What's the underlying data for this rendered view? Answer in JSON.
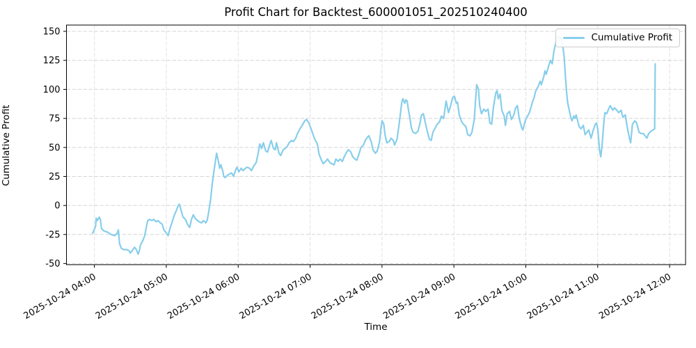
{
  "colors": {
    "line": "#87CEEB",
    "grid": "#b3b3b3",
    "spine": "#000000",
    "background": "#ffffff"
  },
  "chart_data": {
    "type": "line",
    "title": "Profit Chart for Backtest_600001051_202510240400",
    "xlabel": "Time",
    "ylabel": "Cumulative Profit",
    "grid": {
      "style": "dashed",
      "on": true
    },
    "legend": {
      "position": "upper-right",
      "entries": [
        {
          "label": "Cumulative Profit",
          "color": "#87CEEB"
        }
      ]
    },
    "x_axis": {
      "tick_labels": [
        "2025-10-24 04:00",
        "2025-10-24 05:00",
        "2025-10-24 06:00",
        "2025-10-24 07:00",
        "2025-10-24 08:00",
        "2025-10-24 09:00",
        "2025-10-24 10:00",
        "2025-10-24 11:00",
        "2025-10-24 12:00"
      ],
      "tick_minutes": [
        0,
        60,
        120,
        180,
        240,
        300,
        360,
        420,
        480
      ],
      "range_minutes": [
        -23.3,
        493.3
      ],
      "tick_rotation_deg": 30
    },
    "y_axis": {
      "tick_labels": [
        "-50",
        "-25",
        "0",
        "25",
        "50",
        "75",
        "100",
        "125",
        "150"
      ],
      "ticks": [
        -50,
        -25,
        0,
        25,
        50,
        75,
        100,
        125,
        150
      ],
      "range": [
        -51.0,
        155.4
      ]
    },
    "series": [
      {
        "name": "Cumulative Profit",
        "color": "#87CEEB",
        "points": [
          [
            -1.5,
            -24
          ],
          [
            1,
            -18
          ],
          [
            1.5,
            -11
          ],
          [
            2.5,
            -13
          ],
          [
            4,
            -10
          ],
          [
            5,
            -12
          ],
          [
            6,
            -20
          ],
          [
            8,
            -22
          ],
          [
            11,
            -23
          ],
          [
            14,
            -25
          ],
          [
            17,
            -26
          ],
          [
            19,
            -24
          ],
          [
            20,
            -21
          ],
          [
            21,
            -33
          ],
          [
            22.5,
            -37
          ],
          [
            24.5,
            -38
          ],
          [
            27,
            -38
          ],
          [
            29,
            -39
          ],
          [
            30,
            -41
          ],
          [
            31.5,
            -39
          ],
          [
            33.5,
            -36
          ],
          [
            35,
            -38
          ],
          [
            36.5,
            -42
          ],
          [
            37.5,
            -39
          ],
          [
            38.5,
            -34
          ],
          [
            40.5,
            -30
          ],
          [
            42,
            -26
          ],
          [
            43.5,
            -18
          ],
          [
            44.5,
            -13
          ],
          [
            46,
            -12
          ],
          [
            48,
            -13
          ],
          [
            49.5,
            -12
          ],
          [
            51.5,
            -14
          ],
          [
            53,
            -13
          ],
          [
            55,
            -15
          ],
          [
            56.5,
            -16
          ],
          [
            58,
            -21
          ],
          [
            59.5,
            -23
          ],
          [
            61.5,
            -26
          ],
          [
            63,
            -20
          ],
          [
            65,
            -14
          ],
          [
            66.5,
            -9
          ],
          [
            68.5,
            -4
          ],
          [
            70,
            0
          ],
          [
            71,
            1
          ],
          [
            72.5,
            -5
          ],
          [
            74,
            -10
          ],
          [
            76,
            -12
          ],
          [
            77.5,
            -16
          ],
          [
            79.5,
            -19
          ],
          [
            81,
            -12
          ],
          [
            82.5,
            -8
          ],
          [
            84,
            -11
          ],
          [
            86,
            -13
          ],
          [
            87.5,
            -14
          ],
          [
            89.5,
            -15
          ],
          [
            91,
            -13
          ],
          [
            93,
            -15
          ],
          [
            94,
            -13
          ],
          [
            95,
            -8
          ],
          [
            97,
            5
          ],
          [
            98.5,
            20
          ],
          [
            100.5,
            35
          ],
          [
            102,
            45
          ],
          [
            103.5,
            38
          ],
          [
            104.5,
            32
          ],
          [
            105.5,
            35
          ],
          [
            107,
            30
          ],
          [
            108,
            25
          ],
          [
            109,
            24
          ],
          [
            111,
            26
          ],
          [
            112.5,
            27
          ],
          [
            114.5,
            28
          ],
          [
            116,
            25
          ],
          [
            118,
            31
          ],
          [
            119,
            33
          ],
          [
            120.5,
            29
          ],
          [
            122.5,
            32
          ],
          [
            124,
            30
          ],
          [
            126,
            32
          ],
          [
            127.5,
            33
          ],
          [
            129.5,
            32
          ],
          [
            131,
            30
          ],
          [
            133,
            34
          ],
          [
            135,
            37
          ],
          [
            136.5,
            44
          ],
          [
            138,
            53
          ],
          [
            139.5,
            49
          ],
          [
            141,
            54
          ],
          [
            143,
            47
          ],
          [
            144.5,
            46
          ],
          [
            146.5,
            53
          ],
          [
            147.5,
            56
          ],
          [
            149.5,
            49
          ],
          [
            151,
            48
          ],
          [
            152,
            54
          ],
          [
            154,
            45
          ],
          [
            155.5,
            43
          ],
          [
            157.5,
            48
          ],
          [
            159,
            49
          ],
          [
            161,
            51
          ],
          [
            162.5,
            54
          ],
          [
            164.5,
            56
          ],
          [
            166,
            55
          ],
          [
            168,
            58
          ],
          [
            169.5,
            62
          ],
          [
            171.5,
            66
          ],
          [
            174,
            70
          ],
          [
            175.5,
            73
          ],
          [
            177,
            74
          ],
          [
            179,
            71
          ],
          [
            180.5,
            67
          ],
          [
            182.5,
            61
          ],
          [
            184,
            57
          ],
          [
            186,
            53
          ],
          [
            187.5,
            44
          ],
          [
            189.5,
            39
          ],
          [
            191,
            36
          ],
          [
            193,
            38
          ],
          [
            194.5,
            40
          ],
          [
            196.5,
            37
          ],
          [
            198,
            36
          ],
          [
            200,
            35
          ],
          [
            201.5,
            40
          ],
          [
            203.5,
            38
          ],
          [
            205,
            40
          ],
          [
            207,
            38
          ],
          [
            208.5,
            42
          ],
          [
            210.5,
            46
          ],
          [
            212,
            48
          ],
          [
            214,
            46
          ],
          [
            215.5,
            42
          ],
          [
            217.5,
            40
          ],
          [
            219,
            39
          ],
          [
            221,
            45
          ],
          [
            222.5,
            50
          ],
          [
            224.5,
            52
          ],
          [
            226,
            56
          ],
          [
            228,
            59
          ],
          [
            229,
            60
          ],
          [
            231,
            55
          ],
          [
            232.5,
            48
          ],
          [
            234.5,
            45
          ],
          [
            236,
            47
          ],
          [
            238,
            55
          ],
          [
            239,
            65
          ],
          [
            240,
            73
          ],
          [
            241.5,
            70
          ],
          [
            242.5,
            61
          ],
          [
            244,
            54
          ],
          [
            246,
            55
          ],
          [
            247.5,
            58
          ],
          [
            249.5,
            56
          ],
          [
            250.5,
            52
          ],
          [
            252.5,
            57
          ],
          [
            254,
            68
          ],
          [
            255.5,
            80
          ],
          [
            256.5,
            89
          ],
          [
            257.5,
            92
          ],
          [
            259,
            88
          ],
          [
            260,
            91
          ],
          [
            261,
            90
          ],
          [
            262,
            83
          ],
          [
            263.5,
            74
          ],
          [
            264.5,
            67
          ],
          [
            266,
            63
          ],
          [
            268,
            62
          ],
          [
            270,
            64
          ],
          [
            271.5,
            70
          ],
          [
            273,
            78
          ],
          [
            274.5,
            79
          ],
          [
            276,
            72
          ],
          [
            278,
            63
          ],
          [
            279.5,
            57
          ],
          [
            281,
            56
          ],
          [
            282.5,
            63
          ],
          [
            284.5,
            67
          ],
          [
            286,
            70
          ],
          [
            288,
            72
          ],
          [
            289.5,
            77
          ],
          [
            291.5,
            75
          ],
          [
            292.5,
            83
          ],
          [
            293.5,
            90
          ],
          [
            295.5,
            80
          ],
          [
            297,
            85
          ],
          [
            299,
            93
          ],
          [
            300.5,
            94
          ],
          [
            302,
            88
          ],
          [
            303,
            89
          ],
          [
            304.5,
            78
          ],
          [
            306.5,
            72
          ],
          [
            308,
            70
          ],
          [
            310,
            68
          ],
          [
            311.5,
            61
          ],
          [
            313.5,
            60
          ],
          [
            315,
            63
          ],
          [
            317,
            74
          ],
          [
            318,
            90
          ],
          [
            319,
            104
          ],
          [
            320.5,
            100
          ],
          [
            321.5,
            86
          ],
          [
            323,
            79
          ],
          [
            325,
            83
          ],
          [
            326.5,
            81
          ],
          [
            328.5,
            83
          ],
          [
            330,
            71
          ],
          [
            331.5,
            70
          ],
          [
            333,
            85
          ],
          [
            335,
            97
          ],
          [
            336,
            99
          ],
          [
            337,
            92
          ],
          [
            338.5,
            96
          ],
          [
            340,
            82
          ],
          [
            342,
            77
          ],
          [
            343,
            69
          ],
          [
            344.5,
            79
          ],
          [
            346.5,
            81
          ],
          [
            348,
            74
          ],
          [
            350,
            78
          ],
          [
            351.5,
            84
          ],
          [
            353,
            86
          ],
          [
            354.5,
            75
          ],
          [
            356.5,
            67
          ],
          [
            357.5,
            65
          ],
          [
            359.5,
            73
          ],
          [
            361,
            76
          ],
          [
            363,
            80
          ],
          [
            364.5,
            85
          ],
          [
            365.5,
            89
          ],
          [
            367,
            93
          ],
          [
            368,
            98
          ],
          [
            369,
            100
          ],
          [
            370.5,
            103
          ],
          [
            372,
            107
          ],
          [
            373,
            104
          ],
          [
            375,
            111
          ],
          [
            376,
            116
          ],
          [
            377,
            113
          ],
          [
            379,
            120
          ],
          [
            380.5,
            125
          ],
          [
            382,
            122
          ],
          [
            383.5,
            133
          ],
          [
            385,
            140
          ],
          [
            386,
            144
          ],
          [
            387,
            146
          ],
          [
            388.5,
            143
          ],
          [
            389.5,
            145
          ],
          [
            390.5,
            140
          ],
          [
            392,
            128
          ],
          [
            393,
            112
          ],
          [
            394,
            98
          ],
          [
            395,
            88
          ],
          [
            396.5,
            81
          ],
          [
            397.5,
            76
          ],
          [
            398.5,
            73
          ],
          [
            400,
            77
          ],
          [
            401,
            75
          ],
          [
            402,
            78
          ],
          [
            403.5,
            72
          ],
          [
            404.5,
            68
          ],
          [
            406,
            66
          ],
          [
            408,
            69
          ],
          [
            409.5,
            61
          ],
          [
            411,
            63
          ],
          [
            412.5,
            65
          ],
          [
            414.5,
            58
          ],
          [
            416,
            64
          ],
          [
            418,
            70
          ],
          [
            419,
            71
          ],
          [
            420,
            66
          ],
          [
            421.5,
            48
          ],
          [
            422.5,
            42
          ],
          [
            423.5,
            50
          ],
          [
            425,
            70
          ],
          [
            426,
            80
          ],
          [
            427.5,
            79
          ],
          [
            429.5,
            84
          ],
          [
            430.5,
            86
          ],
          [
            432.5,
            82
          ],
          [
            434,
            84
          ],
          [
            436,
            82
          ],
          [
            437.5,
            80
          ],
          [
            439.5,
            82
          ],
          [
            441,
            76
          ],
          [
            443,
            78
          ],
          [
            444.5,
            68
          ],
          [
            446.5,
            58
          ],
          [
            447.5,
            54
          ],
          [
            449,
            70
          ],
          [
            451,
            73
          ],
          [
            452.5,
            71
          ],
          [
            454.5,
            63
          ],
          [
            456,
            62
          ],
          [
            458,
            62
          ],
          [
            459.5,
            60
          ],
          [
            461,
            58
          ],
          [
            462.5,
            62
          ],
          [
            464.5,
            64
          ],
          [
            466,
            65
          ],
          [
            467.5,
            66
          ],
          [
            468,
            122
          ]
        ]
      }
    ]
  }
}
